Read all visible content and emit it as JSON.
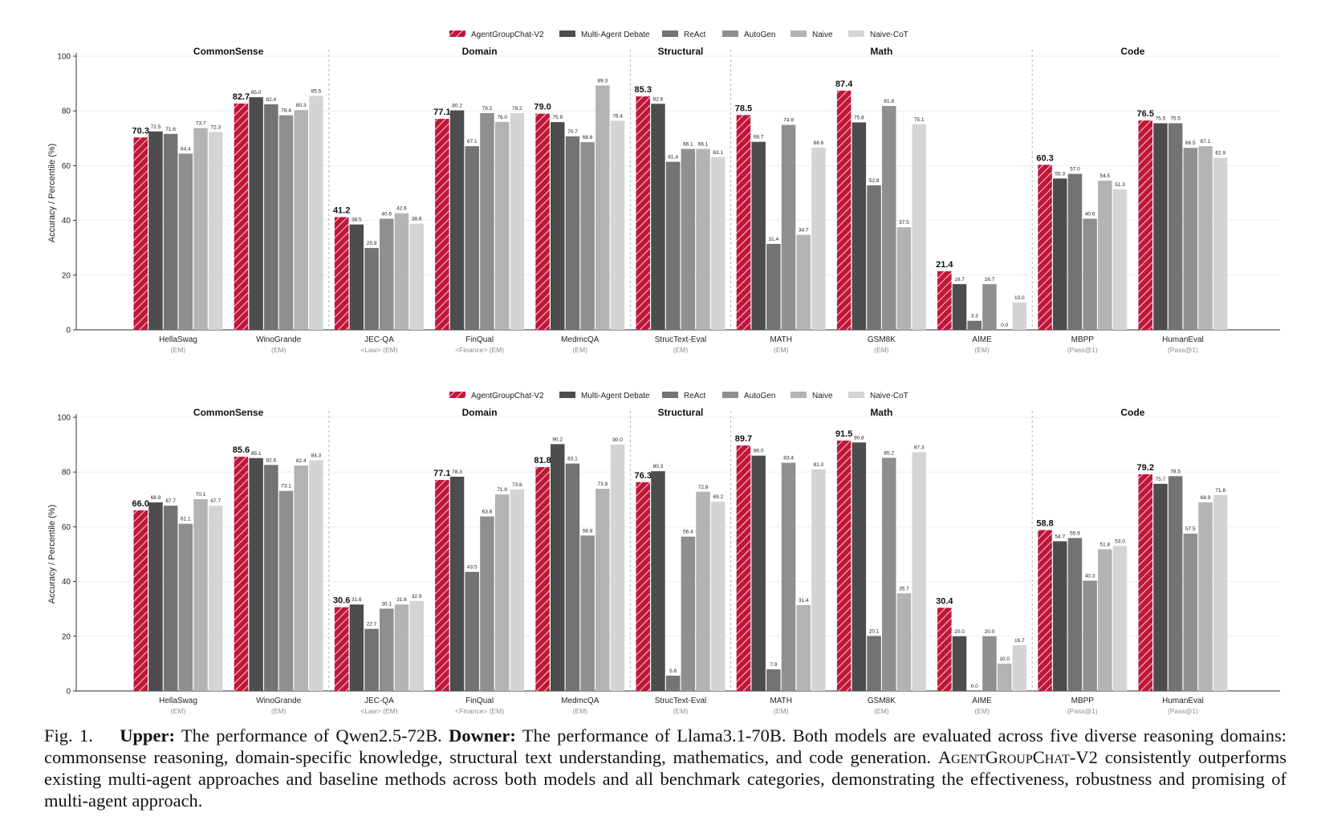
{
  "legend": {
    "entries": [
      "AgentGroupChat-V2",
      "Multi-Agent Debate",
      "ReAct",
      "AutoGen",
      "Naive",
      "Naive-CoT"
    ],
    "colors": [
      "#c0163a",
      "#4d4d4d",
      "#737373",
      "#8f8f8f",
      "#b3b3b3",
      "#d4d4d4"
    ],
    "first_hatched": true
  },
  "chart_data": [
    {
      "type": "bar",
      "panel": "upper",
      "ylabel": "Accuracy / Percentile (%)",
      "ylim": [
        0,
        100
      ],
      "yticks": [
        0,
        20,
        40,
        60,
        80,
        100
      ],
      "grid": "horizontal-light",
      "legend_position": "top-center",
      "domains": [
        {
          "name": "CommonSense",
          "count": 2
        },
        {
          "name": "Domain",
          "count": 3
        },
        {
          "name": "Structural",
          "count": 1
        },
        {
          "name": "Math",
          "count": 3
        },
        {
          "name": "Code",
          "count": 2
        }
      ],
      "categories": [
        "HellaSwag",
        "WinoGrande",
        "JEC-QA",
        "FinQual",
        "MedmcQA",
        "StrucText-Eval",
        "MATH",
        "GSM8K",
        "AIME",
        "MBPP",
        "HumanEval"
      ],
      "category_sublabels": [
        "(EM)",
        "(EM)",
        "<Law> (EM)",
        "<Finance> (EM)",
        "(EM)",
        "(EM)",
        "(EM)",
        "(EM)",
        "(EM)",
        "(Pass@1)",
        "(Pass@1)"
      ],
      "series": [
        {
          "name": "AgentGroupChat-V2",
          "values": [
            70.3,
            82.7,
            41.2,
            77.1,
            79.0,
            85.3,
            78.5,
            87.4,
            21.4,
            60.3,
            76.5
          ]
        },
        {
          "name": "Multi-Agent Debate",
          "values": [
            72.5,
            85.0,
            38.5,
            80.2,
            75.9,
            82.6,
            68.7,
            75.8,
            16.7,
            55.3,
            75.5
          ]
        },
        {
          "name": "ReAct",
          "values": [
            71.6,
            82.4,
            29.9,
            67.1,
            70.7,
            61.4,
            31.4,
            52.8,
            3.3,
            57.0,
            75.5
          ]
        },
        {
          "name": "AutoGen",
          "values": [
            64.4,
            78.4,
            40.6,
            79.2,
            68.6,
            66.1,
            74.9,
            81.8,
            16.7,
            40.6,
            66.5
          ]
        },
        {
          "name": "Naive",
          "values": [
            73.7,
            80.3,
            42.6,
            76.0,
            89.3,
            66.1,
            34.7,
            37.5,
            0.0,
            54.5,
            67.1
          ]
        },
        {
          "name": "Naive-CoT",
          "values": [
            72.3,
            85.5,
            38.8,
            79.2,
            76.4,
            63.1,
            66.6,
            75.1,
            10.0,
            51.3,
            62.9
          ]
        }
      ]
    },
    {
      "type": "bar",
      "panel": "lower",
      "ylabel": "Accuracy / Percentile (%)",
      "ylim": [
        0,
        100
      ],
      "yticks": [
        0,
        20,
        40,
        60,
        80,
        100
      ],
      "grid": "horizontal-light",
      "legend_position": "top-center",
      "domains": [
        {
          "name": "CommonSense",
          "count": 2
        },
        {
          "name": "Domain",
          "count": 3
        },
        {
          "name": "Structural",
          "count": 1
        },
        {
          "name": "Math",
          "count": 3
        },
        {
          "name": "Code",
          "count": 2
        }
      ],
      "categories": [
        "HellaSwag",
        "WinoGrande",
        "JEC-QA",
        "FinQual",
        "MedmcQA",
        "StrucText-Eval",
        "MATH",
        "GSM8K",
        "AIME",
        "MBPP",
        "HumanEval"
      ],
      "category_sublabels": [
        "(EM)",
        "(EM)",
        "<Law> (EM)",
        "<Finance> (EM)",
        "(EM)",
        "(EM)",
        "(EM)",
        "(EM)",
        "(EM)",
        "(Pass@1)",
        "(Pass@1)"
      ],
      "series": [
        {
          "name": "AgentGroupChat-V2",
          "values": [
            66.0,
            85.6,
            30.6,
            77.1,
            81.8,
            76.3,
            89.7,
            91.5,
            30.4,
            58.8,
            79.2
          ]
        },
        {
          "name": "Multi-Agent Debate",
          "values": [
            68.9,
            85.1,
            31.6,
            78.3,
            90.2,
            80.3,
            86.0,
            90.8,
            20.0,
            54.7,
            75.7
          ]
        },
        {
          "name": "ReAct",
          "values": [
            67.7,
            82.6,
            22.7,
            43.5,
            83.1,
            5.6,
            7.9,
            20.1,
            0.0,
            55.9,
            78.5
          ]
        },
        {
          "name": "AutoGen",
          "values": [
            61.1,
            73.1,
            30.1,
            63.8,
            56.8,
            56.4,
            83.4,
            85.2,
            20.0,
            40.3,
            57.5
          ]
        },
        {
          "name": "Naive",
          "values": [
            70.1,
            82.4,
            31.6,
            71.8,
            73.9,
            72.8,
            31.4,
            35.7,
            10.0,
            51.8,
            68.9
          ]
        },
        {
          "name": "Naive-CoT",
          "values": [
            67.7,
            84.3,
            32.9,
            73.6,
            90.0,
            69.2,
            81.0,
            87.3,
            16.7,
            53.0,
            71.6
          ]
        }
      ]
    }
  ],
  "caption": {
    "fig_label": "Fig. 1.",
    "upper_label": "Upper:",
    "upper_text": "The performance of Qwen2.5-72B.",
    "downer_label": "Downer:",
    "downer_text": "The performance of Llama3.1-70B. Both models are evaluated across five diverse reasoning domains: commonsense reasoning, domain-specific knowledge, structural text understanding, mathematics, and code generation.",
    "method_name": "AgentGroupChat-V2",
    "rest_text": "consistently outperforms existing multi-agent approaches and baseline methods across both models and all benchmark categories, demonstrating the effectiveness, robustness and promising of multi-agent approach."
  }
}
